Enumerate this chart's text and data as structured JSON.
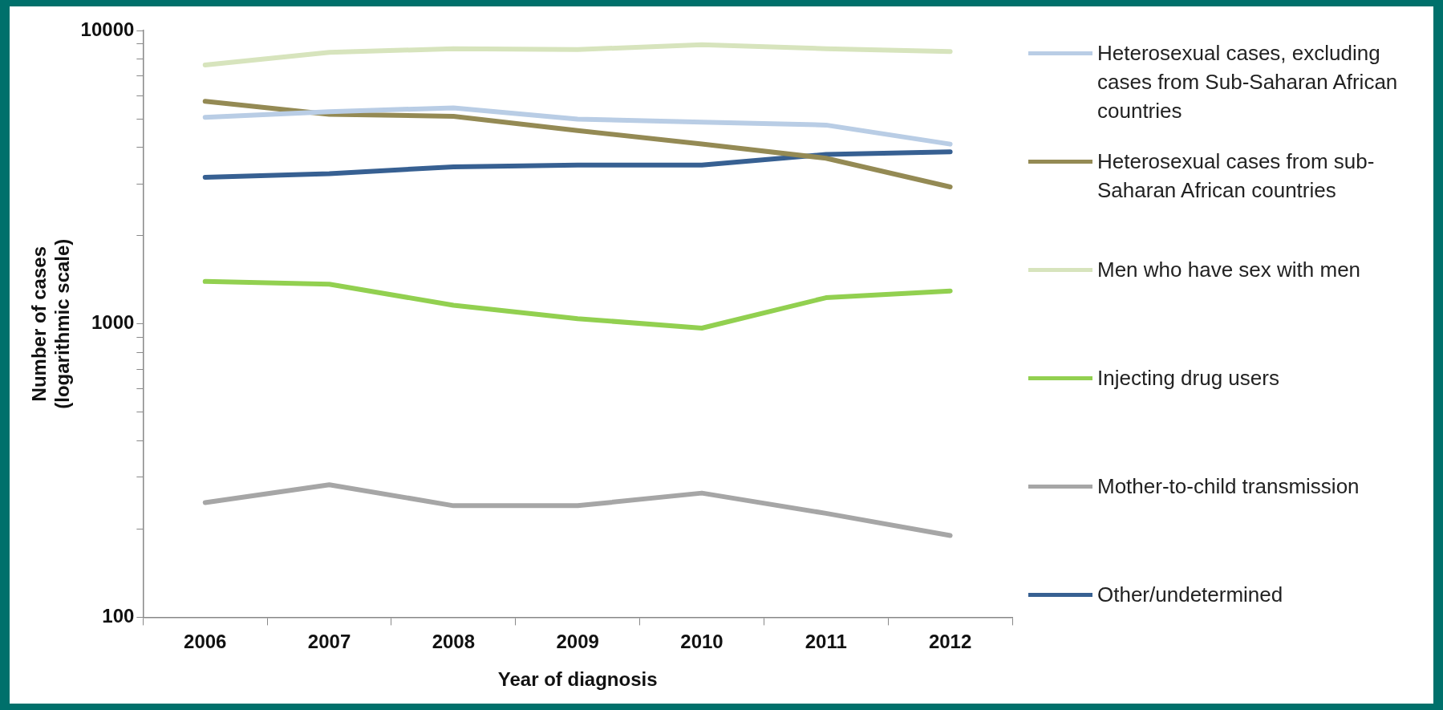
{
  "chart_data": {
    "type": "line",
    "xlabel": "Year of diagnosis",
    "ylabel": "Number of cases\n(logarithmic scale)",
    "categories": [
      "2006",
      "2007",
      "2008",
      "2009",
      "2010",
      "2011",
      "2012"
    ],
    "log": "y",
    "ylim": [
      100,
      10000
    ],
    "yticks": [
      100,
      {
        "value": 200,
        "label": null
      },
      {
        "value": 300,
        "label": null
      },
      {
        "value": 400,
        "label": null
      },
      {
        "value": 500,
        "label": null
      },
      {
        "value": 600,
        "label": null
      },
      {
        "value": 700,
        "label": null
      },
      {
        "value": 800,
        "label": null
      },
      {
        "value": 900,
        "label": null
      },
      1000,
      {
        "value": 2000,
        "label": null
      },
      {
        "value": 3000,
        "label": null
      },
      {
        "value": 4000,
        "label": null
      },
      {
        "value": 5000,
        "label": null
      },
      {
        "value": 6000,
        "label": null
      },
      {
        "value": 7000,
        "label": null
      },
      {
        "value": 8000,
        "label": null
      },
      {
        "value": 9000,
        "label": null
      },
      10000
    ],
    "grid": false,
    "legend": "right",
    "marker": "none",
    "line_style": "solid",
    "series": [
      {
        "name": "Heterosexual cases, excluding cases from Sub-Saharan African countries",
        "color": "#b9cde5",
        "values": [
          5060,
          5290,
          5450,
          4990,
          4870,
          4760,
          4100
        ]
      },
      {
        "name": "Heterosexual cases from sub-Saharan African countries",
        "color": "#948a54",
        "values": [
          5740,
          5180,
          5100,
          4560,
          4100,
          3670,
          2930
        ]
      },
      {
        "name": "Men who have sex with men",
        "color": "#d7e4bd",
        "values": [
          7630,
          8420,
          8670,
          8610,
          8940,
          8670,
          8480
        ]
      },
      {
        "name": "Injecting drug users",
        "color": "#92d050",
        "values": [
          1395,
          1365,
          1157,
          1042,
          967,
          1228,
          1295
        ]
      },
      {
        "name": "Mother-to-child transmission",
        "color": "#a6a6a6",
        "values": [
          246,
          283,
          240,
          240,
          265,
          226,
          190
        ]
      },
      {
        "name": "Other/undetermined",
        "color": "#376092",
        "values": [
          3160,
          3250,
          3430,
          3480,
          3480,
          3780,
          3860
        ]
      }
    ]
  }
}
